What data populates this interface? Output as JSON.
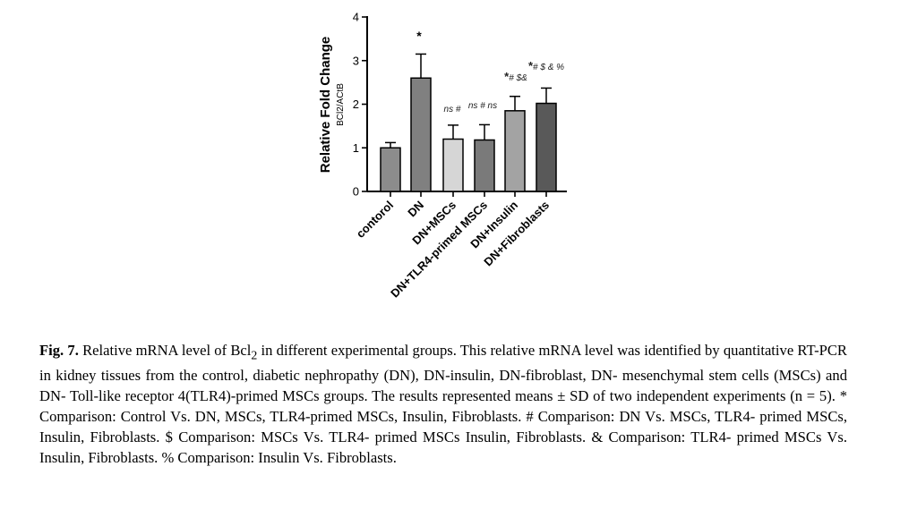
{
  "chart_data": {
    "type": "bar",
    "categories": [
      "contorol",
      "DN",
      "DN+MSCs",
      "DN+TLR4-primed MSCs",
      "DN+Insulin",
      "DN+Fibroblasts"
    ],
    "values": [
      1.0,
      2.6,
      1.2,
      1.18,
      1.85,
      2.02
    ],
    "errors": [
      0.12,
      0.55,
      0.32,
      0.35,
      0.33,
      0.35
    ],
    "bar_colors": [
      "#8c8c8c",
      "#808080",
      "#d6d6d6",
      "#7a7a7a",
      "#a3a3a3",
      "#595959"
    ],
    "annotations": [
      "",
      "*",
      "ns #",
      "ns # ns",
      "*# $&",
      "*# $ & %"
    ],
    "title": "",
    "xlabel": "",
    "ylabel": "Relative Fold Change",
    "ylabel_sub": "BCl2/ACtB",
    "ylim": [
      0,
      4
    ],
    "yticks": [
      "0",
      "1",
      "2",
      "3",
      "4"
    ],
    "grid": false
  },
  "caption": {
    "fig_label": "Fig. 7.",
    "text_pre": " Relative mRNA level of Bcl",
    "subscript": "2",
    "text_post": " in different experimental groups. This relative mRNA level was identified by quantitative RT-PCR in kidney tissues from the control, diabetic nephropathy (DN), DN-insulin, DN-fibroblast, DN- mesenchymal stem cells (MSCs) and DN- Toll-like receptor 4(TLR4)-primed MSCs groups. The results represented means ± SD of two independent experiments (n = 5). * Comparison: Control Vs. DN, MSCs, TLR4-primed MSCs, Insulin, Fibroblasts. # Comparison: DN Vs. MSCs, TLR4- primed MSCs, Insulin, Fibroblasts. $ Comparison: MSCs Vs. TLR4- primed MSCs Insulin, Fibroblasts. & Comparison: TLR4- primed MSCs Vs. Insulin, Fibroblasts. % Comparison: Insulin Vs. Fibroblasts."
  }
}
